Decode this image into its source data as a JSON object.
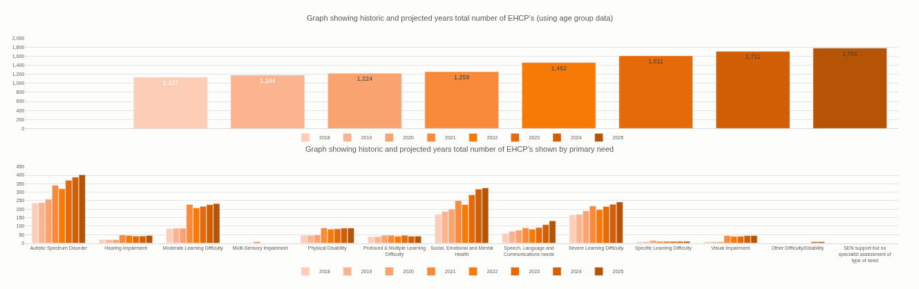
{
  "chart_data": [
    {
      "type": "bar",
      "title": "Graph showing historic and projected years total number of EHCP’s (using age group data)",
      "stacked": true,
      "grid": "y",
      "legend": "bottom",
      "tick_labels": "y",
      "categories": [
        null,
        null,
        null,
        null,
        null,
        null,
        null,
        null,
        null
      ],
      "ylim": [
        0,
        2000
      ],
      "yticks": [
        {
          "value": 0,
          "label": "0"
        },
        {
          "value": 200,
          "label": "200"
        },
        {
          "value": 400,
          "label": "400"
        },
        {
          "value": 600,
          "label": "600"
        },
        {
          "value": 800,
          "label": "800"
        },
        {
          "value": 1000,
          "label": "1,000"
        },
        {
          "value": 1200,
          "label": "1,200"
        },
        {
          "value": 1400,
          "label": "1,400"
        },
        {
          "value": 1600,
          "label": "1,600"
        },
        {
          "value": 1800,
          "label": "1,800"
        },
        {
          "value": 2000,
          "label": "2,000"
        }
      ],
      "series": [
        {
          "name": "2018",
          "color": "#fdcdb6",
          "values": [
            null,
            1137,
            null,
            null,
            null,
            null,
            null,
            null,
            null
          ],
          "value_labels": [
            null,
            "1,137",
            null,
            null,
            null,
            null,
            null,
            null,
            null
          ]
        },
        {
          "name": "2019",
          "color": "#fbb48f",
          "values": [
            null,
            null,
            1184,
            null,
            null,
            null,
            null,
            null,
            null
          ],
          "value_labels": [
            null,
            null,
            "1,184",
            null,
            null,
            null,
            null,
            null,
            null
          ]
        },
        {
          "name": "2020",
          "color": "#f9a46f",
          "values": [
            null,
            null,
            null,
            1224,
            null,
            null,
            null,
            null,
            null
          ],
          "value_labels": [
            null,
            null,
            null,
            "1,224",
            null,
            null,
            null,
            null,
            null
          ]
        },
        {
          "name": "2021",
          "color": "#f98a3a",
          "values": [
            null,
            null,
            null,
            null,
            1259,
            null,
            null,
            null,
            null
          ],
          "value_labels": [
            null,
            null,
            null,
            null,
            "1,259",
            null,
            null,
            null,
            null
          ]
        },
        {
          "name": "2022",
          "color": "#f77a07",
          "values": [
            null,
            null,
            null,
            null,
            null,
            1462,
            null,
            null,
            null
          ],
          "value_labels": [
            null,
            null,
            null,
            null,
            null,
            "1,462",
            null,
            null,
            null
          ]
        },
        {
          "name": "2023",
          "color": "#e56b0a",
          "values": [
            null,
            null,
            null,
            null,
            null,
            null,
            1611,
            null,
            null
          ],
          "value_labels": [
            null,
            null,
            null,
            null,
            null,
            null,
            "1,611",
            null,
            null
          ]
        },
        {
          "name": "2024",
          "color": "#d05f05",
          "values": [
            null,
            null,
            null,
            null,
            null,
            null,
            null,
            1711,
            null
          ],
          "value_labels": [
            null,
            null,
            null,
            null,
            null,
            null,
            null,
            "1,711",
            null
          ]
        },
        {
          "name": "2025",
          "color": "#b65405",
          "values": [
            null,
            null,
            null,
            null,
            null,
            null,
            null,
            null,
            1781
          ],
          "value_labels": [
            null,
            null,
            null,
            null,
            null,
            null,
            null,
            null,
            "1,781"
          ]
        }
      ]
    },
    {
      "type": "bar",
      "title": "Graph showing historic and projected years total number of EHCP’s shown by primary need",
      "grid": "y",
      "legend": "bottom",
      "categories": [
        "Autistic Spectrum Disorder",
        "Hearing Impairment",
        "Moderate Learning Difficulty",
        "Multi-Sensory Impairment",
        "Physical Disability",
        "Profound & Multiple Learning Difficulty",
        "Social, Emotional and Mental Health",
        "Speech, Language and Communications needs",
        "Severe Learning Difficulty",
        "Specific Learning Difficulty",
        "Visual Impairment",
        "Other Difficulty/Disability",
        "SEN support but no specialist assessment of type of need"
      ],
      "ylim": [
        0,
        450
      ],
      "yticks": [
        0,
        50,
        100,
        150,
        200,
        250,
        300,
        350,
        400,
        450
      ],
      "series": [
        {
          "name": "2018",
          "color": "#fdcdb6",
          "values": [
            235,
            20,
            85,
            null,
            45,
            38,
            169,
            57,
            166,
            8,
            8,
            null,
            null
          ]
        },
        {
          "name": "2019",
          "color": "#fbb48f",
          "values": [
            238,
            20,
            87,
            null,
            45,
            38,
            186,
            69,
            169,
            8,
            8,
            null,
            null
          ]
        },
        {
          "name": "2020",
          "color": "#f9a46f",
          "values": [
            258,
            20,
            87,
            null,
            48,
            46,
            199,
            76,
            189,
            15,
            8,
            null,
            null
          ]
        },
        {
          "name": "2021",
          "color": "#f98a3a",
          "values": [
            340,
            48,
            228,
            8,
            90,
            46,
            250,
            90,
            218,
            10,
            44,
            null,
            null
          ]
        },
        {
          "name": "2022",
          "color": "#f77a07",
          "values": [
            320,
            45,
            207,
            null,
            82,
            41,
            226,
            82,
            197,
            10,
            40,
            null,
            null
          ]
        },
        {
          "name": "2023",
          "color": "#e56b0a",
          "values": [
            370,
            42,
            216,
            null,
            84,
            46,
            284,
            92,
            215,
            10,
            40,
            null,
            null
          ]
        },
        {
          "name": "2024",
          "color": "#d05f05",
          "values": [
            388,
            42,
            226,
            null,
            89,
            41,
            318,
            109,
            229,
            10,
            44,
            8,
            null
          ]
        },
        {
          "name": "2025",
          "color": "#b65405",
          "values": [
            402,
            45,
            233,
            null,
            89,
            41,
            325,
            131,
            242,
            10,
            44,
            8,
            null
          ]
        }
      ]
    }
  ]
}
